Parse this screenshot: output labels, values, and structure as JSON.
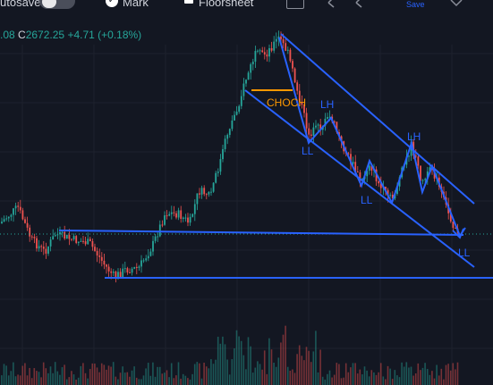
{
  "toolbar": {
    "autosave_label": "utosave",
    "mark_label": "Mark",
    "floorsheet_label": "Floorsheet",
    "save_label": "Save",
    "undo_icon": "undo-icon",
    "redo_icon": "redo-icon",
    "chevron_icon": "chevron-down-icon"
  },
  "ohlc": {
    "low_fragment": ".08",
    "close_label": "C",
    "close_value": "2672.25",
    "change": "+4.71 (+0.18%)"
  },
  "annotations": {
    "choch": "CHOCH",
    "lh1": "LH",
    "ll1": "LL",
    "lh2": "LH",
    "ll2": "LL",
    "ll3": "LL"
  },
  "colors": {
    "background": "#131722",
    "up": "#26a69a",
    "down": "#ef5350",
    "drawing": "#2962ff",
    "choch": "#ff9800",
    "toggle_knob": "#e8e8ea"
  }
}
